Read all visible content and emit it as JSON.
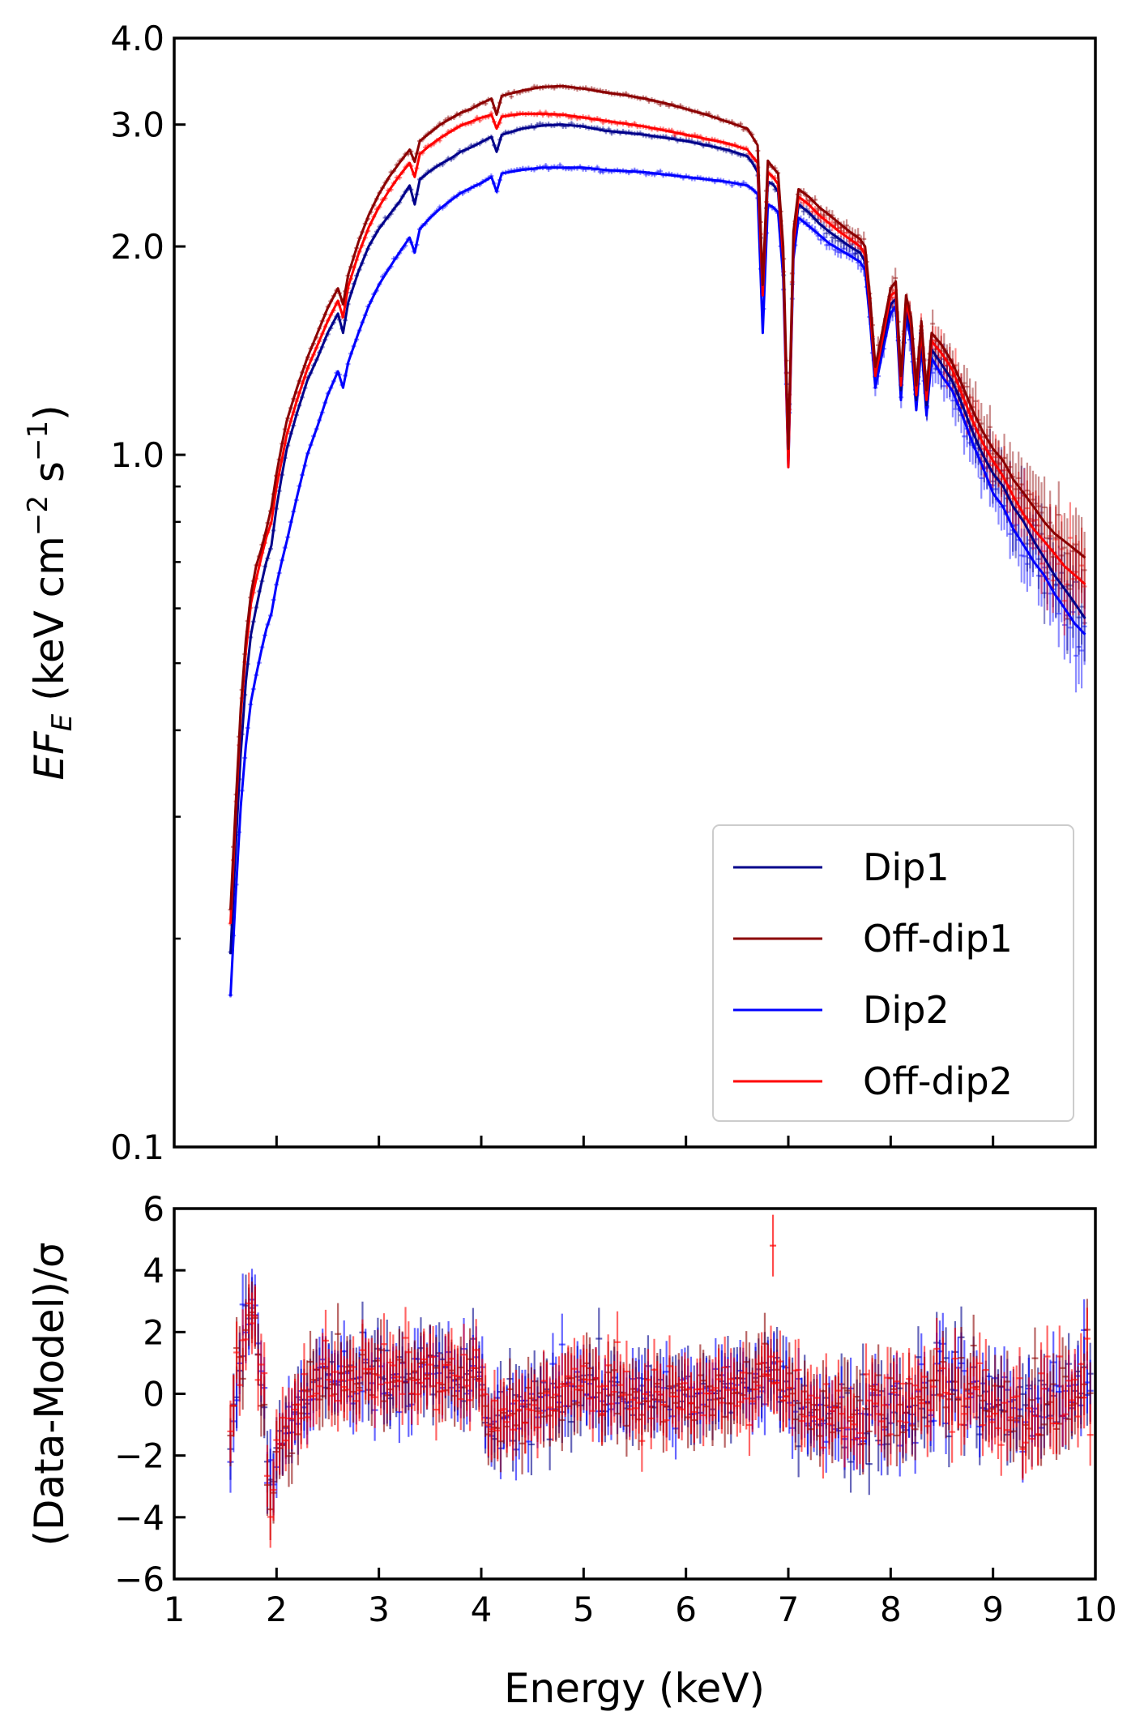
{
  "chart_data": [
    {
      "type": "line",
      "panel": "spectrum",
      "ylabel_main": "EF",
      "ylabel_sub": "E",
      "ylabel_units": " (keV cm",
      "ylabel_exp1": "−2",
      "ylabel_mid": " s",
      "ylabel_exp2": "−1",
      "ylabel_close": ")",
      "yscale": "log",
      "ylim": [
        0.1,
        4.0
      ],
      "xlim": [
        1,
        10
      ],
      "ytick_labels": [
        "0.1",
        "1.0",
        "2.0",
        "3.0",
        "4.0"
      ],
      "ytick_values": [
        0.1,
        1.0,
        2.0,
        3.0,
        4.0
      ],
      "legend_position": "lower-right",
      "x": [
        1.55,
        1.6,
        1.65,
        1.7,
        1.75,
        1.8,
        1.85,
        1.9,
        1.95,
        2.0,
        2.05,
        2.1,
        2.2,
        2.3,
        2.4,
        2.5,
        2.6,
        2.65,
        2.7,
        2.8,
        2.9,
        3.0,
        3.1,
        3.2,
        3.3,
        3.35,
        3.4,
        3.5,
        3.6,
        3.7,
        3.8,
        3.9,
        4.0,
        4.1,
        4.15,
        4.2,
        4.4,
        4.6,
        4.8,
        5.0,
        5.2,
        5.4,
        5.6,
        5.8,
        6.0,
        6.2,
        6.4,
        6.6,
        6.65,
        6.7,
        6.75,
        6.8,
        6.85,
        6.9,
        6.95,
        7.0,
        7.05,
        7.1,
        7.2,
        7.3,
        7.4,
        7.5,
        7.6,
        7.7,
        7.75,
        7.8,
        7.85,
        7.9,
        8.0,
        8.05,
        8.1,
        8.15,
        8.2,
        8.25,
        8.3,
        8.35,
        8.4,
        8.5,
        8.6,
        8.7,
        8.8,
        8.9,
        9.0,
        9.1,
        9.2,
        9.3,
        9.4,
        9.5,
        9.6,
        9.7,
        9.8,
        9.9
      ],
      "series": [
        {
          "name": "Dip1",
          "color": "#00008b",
          "values": [
            0.19,
            0.27,
            0.37,
            0.47,
            0.55,
            0.6,
            0.65,
            0.7,
            0.74,
            0.84,
            0.93,
            1.02,
            1.15,
            1.28,
            1.38,
            1.5,
            1.6,
            1.5,
            1.66,
            1.84,
            2.0,
            2.12,
            2.22,
            2.32,
            2.45,
            2.3,
            2.5,
            2.57,
            2.63,
            2.68,
            2.74,
            2.78,
            2.83,
            2.88,
            2.74,
            2.9,
            2.96,
            2.99,
            3.0,
            2.98,
            2.94,
            2.92,
            2.9,
            2.87,
            2.84,
            2.8,
            2.76,
            2.7,
            2.64,
            2.56,
            1.72,
            2.48,
            2.46,
            2.4,
            1.9,
            0.98,
            2.0,
            2.3,
            2.24,
            2.16,
            2.1,
            2.05,
            2.0,
            1.96,
            1.9,
            1.6,
            1.3,
            1.4,
            1.65,
            1.68,
            1.24,
            1.62,
            1.5,
            1.2,
            1.48,
            1.18,
            1.42,
            1.35,
            1.28,
            1.18,
            1.08,
            1.0,
            0.94,
            0.9,
            0.84,
            0.8,
            0.75,
            0.71,
            0.67,
            0.64,
            0.61,
            0.58
          ]
        },
        {
          "name": "Off-dip1",
          "color": "#8b0000",
          "values": [
            0.22,
            0.31,
            0.43,
            0.54,
            0.63,
            0.69,
            0.73,
            0.78,
            0.84,
            0.94,
            1.03,
            1.12,
            1.25,
            1.38,
            1.5,
            1.63,
            1.74,
            1.65,
            1.82,
            2.03,
            2.22,
            2.38,
            2.52,
            2.64,
            2.76,
            2.65,
            2.84,
            2.92,
            3.0,
            3.06,
            3.12,
            3.16,
            3.22,
            3.27,
            3.1,
            3.3,
            3.36,
            3.4,
            3.41,
            3.38,
            3.34,
            3.31,
            3.27,
            3.22,
            3.16,
            3.1,
            3.03,
            2.96,
            2.88,
            2.8,
            1.76,
            2.66,
            2.6,
            2.55,
            2.0,
            1.02,
            2.1,
            2.42,
            2.36,
            2.28,
            2.22,
            2.16,
            2.1,
            2.05,
            2.0,
            1.68,
            1.34,
            1.46,
            1.74,
            1.78,
            1.3,
            1.7,
            1.58,
            1.26,
            1.56,
            1.24,
            1.5,
            1.44,
            1.36,
            1.26,
            1.16,
            1.08,
            1.02,
            0.98,
            0.92,
            0.88,
            0.84,
            0.8,
            0.77,
            0.75,
            0.73,
            0.71
          ]
        },
        {
          "name": "Dip2",
          "color": "#0000ff",
          "values": [
            0.165,
            0.23,
            0.31,
            0.38,
            0.44,
            0.48,
            0.52,
            0.56,
            0.59,
            0.65,
            0.7,
            0.75,
            0.87,
            1.0,
            1.1,
            1.22,
            1.32,
            1.25,
            1.36,
            1.5,
            1.64,
            1.76,
            1.86,
            1.96,
            2.06,
            1.96,
            2.12,
            2.2,
            2.27,
            2.33,
            2.39,
            2.43,
            2.47,
            2.52,
            2.4,
            2.55,
            2.58,
            2.6,
            2.6,
            2.6,
            2.58,
            2.57,
            2.56,
            2.54,
            2.52,
            2.5,
            2.48,
            2.45,
            2.42,
            2.38,
            1.5,
            2.3,
            2.28,
            2.24,
            1.8,
            0.96,
            1.92,
            2.2,
            2.14,
            2.08,
            2.02,
            1.98,
            1.94,
            1.9,
            1.85,
            1.55,
            1.25,
            1.36,
            1.6,
            1.64,
            1.2,
            1.58,
            1.46,
            1.16,
            1.44,
            1.14,
            1.38,
            1.3,
            1.24,
            1.14,
            1.04,
            0.96,
            0.88,
            0.84,
            0.78,
            0.74,
            0.7,
            0.67,
            0.63,
            0.6,
            0.57,
            0.55
          ]
        },
        {
          "name": "Off-dip2",
          "color": "#ff0000",
          "values": [
            0.21,
            0.3,
            0.42,
            0.52,
            0.61,
            0.66,
            0.71,
            0.76,
            0.8,
            0.9,
            0.98,
            1.07,
            1.2,
            1.33,
            1.44,
            1.56,
            1.67,
            1.58,
            1.75,
            1.95,
            2.13,
            2.28,
            2.41,
            2.53,
            2.64,
            2.52,
            2.72,
            2.8,
            2.87,
            2.93,
            2.99,
            3.03,
            3.07,
            3.1,
            2.96,
            3.08,
            3.11,
            3.11,
            3.1,
            3.07,
            3.04,
            3.01,
            2.98,
            2.94,
            2.9,
            2.86,
            2.82,
            2.76,
            2.7,
            2.64,
            1.7,
            2.56,
            2.52,
            2.46,
            1.92,
            0.96,
            2.02,
            2.36,
            2.3,
            2.22,
            2.16,
            2.1,
            2.05,
            2.0,
            1.95,
            1.62,
            1.3,
            1.42,
            1.7,
            1.72,
            1.26,
            1.66,
            1.54,
            1.22,
            1.52,
            1.2,
            1.46,
            1.4,
            1.33,
            1.22,
            1.12,
            1.04,
            0.98,
            0.93,
            0.87,
            0.82,
            0.78,
            0.75,
            0.72,
            0.69,
            0.67,
            0.65
          ]
        }
      ]
    },
    {
      "type": "scatter",
      "panel": "residuals",
      "xlabel": "Energy (keV)",
      "ylabel": "(Data-Model)/σ",
      "xlim": [
        1,
        10
      ],
      "ylim": [
        -6,
        6
      ],
      "xtick_labels": [
        "1",
        "2",
        "3",
        "4",
        "5",
        "6",
        "7",
        "8",
        "9",
        "10"
      ],
      "ytick_labels": [
        "−6",
        "−4",
        "−2",
        "0",
        "2",
        "4",
        "6"
      ],
      "ytick_values": [
        -6,
        -4,
        -2,
        0,
        2,
        4,
        6
      ],
      "series": [
        {
          "name": "Dip1",
          "color": "#00008b"
        },
        {
          "name": "Off-dip1",
          "color": "#8b0000"
        },
        {
          "name": "Dip2",
          "color": "#0000ff"
        },
        {
          "name": "Off-dip2",
          "color": "#ff0000"
        }
      ],
      "profile_x": [
        1.55,
        1.65,
        1.75,
        1.82,
        1.88,
        1.92,
        1.97,
        2.05,
        2.2,
        2.35,
        2.5,
        3.0,
        3.5,
        4.0,
        4.1,
        4.5,
        5.0,
        5.5,
        6.0,
        6.5,
        6.85,
        7.0,
        7.5,
        8.0,
        8.5,
        9.0,
        9.5,
        9.9
      ],
      "profile_y": [
        -1.5,
        1.6,
        2.7,
        1.8,
        -0.5,
        -3.3,
        -2.8,
        -1.4,
        -0.6,
        0.2,
        0.6,
        0.5,
        0.6,
        0.4,
        -1.2,
        -0.3,
        0.3,
        -0.1,
        -0.2,
        0.2,
        0.6,
        0.0,
        -0.8,
        -0.5,
        0.4,
        -0.4,
        -0.4,
        0.2
      ]
    }
  ]
}
